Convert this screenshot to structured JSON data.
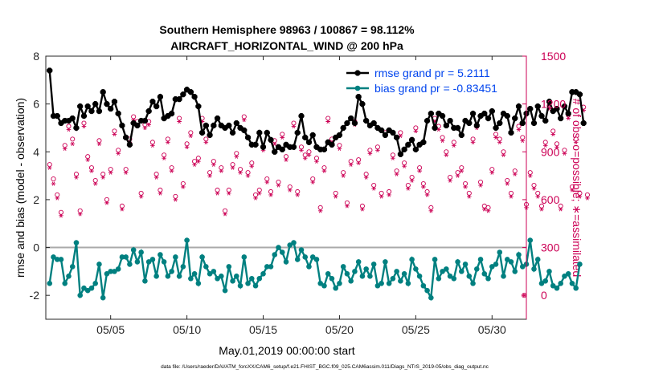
{
  "chart_data": {
    "type": "line",
    "title_line1": "Southern Hemisphere 98963 / 100867 = 98.112%",
    "title_line2": "AIRCRAFT_HORIZONTAL_WIND @ 200 hPa",
    "xlabel": "May.01,2019 00:00:00 start",
    "ylabel_left": "rmse and bias (model - observation)",
    "ylabel_right": "# of obs: o=possible; ∗=assimilated",
    "footer": "data file: /Users/raeder/DAI/ATM_forcXX/CAM6_setup/f.e21.FHIST_BGC.f09_025.CAM6assim.011/Diags_NTrS_2019-05/obs_diag_output.nc",
    "xlim": [
      0.75,
      32.25
    ],
    "ylim_left": [
      -3,
      8
    ],
    "ylim_right": [
      -150,
      1500
    ],
    "x_ticks": [
      5,
      10,
      15,
      20,
      25,
      30
    ],
    "x_tick_labels": [
      "05/05",
      "05/10",
      "05/15",
      "05/20",
      "05/25",
      "05/30"
    ],
    "y_ticks_left": [
      -2,
      0,
      2,
      4,
      6,
      8
    ],
    "y_tick_labels_left": [
      "-2",
      "0",
      "2",
      "4",
      "6",
      "8"
    ],
    "y_ticks_right": [
      0,
      300,
      600,
      900,
      1200,
      1500
    ],
    "y_tick_labels_right": [
      "0",
      "300",
      "600",
      "900",
      "1200",
      "1500"
    ],
    "zero_line": 0,
    "legend_position": "top-right",
    "colors": {
      "rmse": "#000000",
      "bias": "#008080",
      "obs": "#cc0055",
      "legend_text": "#0044ee",
      "zero_line": "#aaaaaa"
    },
    "x_start": 1,
    "x_step": 0.25,
    "series": [
      {
        "name": "rmse grand pr = 5.2111",
        "axis": "left",
        "values": [
          7.4,
          5.5,
          5.5,
          5.2,
          5.3,
          5.3,
          5.4,
          5.0,
          5.9,
          5.5,
          5.9,
          5.7,
          6.0,
          5.7,
          6.5,
          6.0,
          5.8,
          6.1,
          5.6,
          5.1,
          4.6,
          4.3,
          5.2,
          5.1,
          5.3,
          5.3,
          5.7,
          6.1,
          5.9,
          6.3,
          5.4,
          5.5,
          5.6,
          6.2,
          6.2,
          6.4,
          6.6,
          6.5,
          6.3,
          5.9,
          4.8,
          5.1,
          4.7,
          5.1,
          5.4,
          5.1,
          5.0,
          5.1,
          4.8,
          5.2,
          5.0,
          4.9,
          4.6,
          4.3,
          4.3,
          4.8,
          4.2,
          4.8,
          4.5,
          4.0,
          4.2,
          4.1,
          4.3,
          4.2,
          4.2,
          4.8,
          5.5,
          4.6,
          4.4,
          4.7,
          4.2,
          4.1,
          4.1,
          4.4,
          4.3,
          4.6,
          4.7,
          5.0,
          5.2,
          5.4,
          5.2,
          6.3,
          6.0,
          5.3,
          5.1,
          5.2,
          5.0,
          4.9,
          4.7,
          4.9,
          4.8,
          4.6,
          3.9,
          4.1,
          4.3,
          4.5,
          4.1,
          4.3,
          4.4,
          5.3,
          5.6,
          5.0,
          5.6,
          5.5,
          5.1,
          5.3,
          5.0,
          5.0,
          4.7,
          5.3,
          5.2,
          5.6,
          5.1,
          5.5,
          5.6,
          5.4,
          5.7,
          5.0,
          5.2,
          5.6,
          5.5,
          4.8,
          5.4,
          5.9,
          5.2,
          5.6,
          5.8,
          5.2,
          5.9,
          5.5,
          5.3,
          6.1,
          5.7,
          5.8,
          5.4,
          5.9,
          5.6,
          6.5,
          6.5,
          6.4,
          5.2
        ]
      },
      {
        "name": "bias grand pr = -0.83451",
        "axis": "left",
        "values": [
          -1.5,
          -0.4,
          -0.5,
          -0.5,
          -1.5,
          -1.2,
          -0.8,
          0.2,
          -2.0,
          -1.7,
          -1.8,
          -1.7,
          -1.5,
          -0.7,
          -2.1,
          -1.1,
          -1.0,
          -1.0,
          -0.9,
          -0.4,
          -0.4,
          -0.7,
          -0.1,
          -0.6,
          -0.2,
          -1.4,
          -0.6,
          -0.5,
          -1.2,
          -0.3,
          -0.6,
          -1.2,
          -1.0,
          -0.4,
          -1.2,
          -0.8,
          0.3,
          -1.3,
          -1.1,
          -1.5,
          -0.4,
          -0.8,
          -1.1,
          -1.0,
          -1.3,
          -1.2,
          -1.8,
          -0.8,
          -1.4,
          -1.2,
          -1.6,
          -0.4,
          -1.5,
          -1.3,
          -1.6,
          -1.3,
          -1.1,
          -0.8,
          -0.8,
          -0.3,
          0.0,
          -0.2,
          -0.6,
          0.1,
          0.2,
          -0.5,
          -0.1,
          -0.4,
          -0.8,
          -0.4,
          -0.5,
          -1.5,
          -1.6,
          -1.1,
          -1.3,
          -1.7,
          -1.5,
          -0.8,
          -1.1,
          -1.4,
          -1.0,
          -0.6,
          -1.2,
          -0.9,
          -1.2,
          -0.7,
          -1.6,
          -1.5,
          -0.6,
          -1.5,
          -1.3,
          -1.0,
          -1.4,
          -1.1,
          -1.5,
          -0.5,
          -0.9,
          -1.2,
          -1.6,
          -1.8,
          -2.1,
          -0.5,
          -1.3,
          -1.0,
          -0.9,
          -1.2,
          -1.3,
          -0.6,
          -1.0,
          -0.7,
          -1.2,
          -1.5,
          -0.9,
          -0.5,
          -1.1,
          -1.3,
          -0.8,
          -0.7,
          -0.2,
          -1.2,
          -0.5,
          -0.6,
          -1.0,
          -0.3,
          -0.8,
          -0.7,
          0.3,
          -0.9,
          -0.5,
          -1.5,
          -1.4,
          -1.0,
          -1.6,
          -1.7,
          -1.5,
          -1.2,
          -1.1,
          -1.5,
          -1.7,
          -0.7
        ]
      },
      {
        "name": "possible",
        "axis": "right",
        "values": [
          820,
          730,
          630,
          520,
          940,
          1060,
          980,
          760,
          530,
          1080,
          870,
          800,
          720,
          970,
          760,
          600,
          790,
          1030,
          910,
          560,
          790,
          980,
          1120,
          1090,
          640,
          1070,
          1090,
          960,
          760,
          660,
          880,
          980,
          800,
          620,
          1110,
          700,
          950,
          1020,
          840,
          860,
          1110,
          980,
          770,
          840,
          660,
          800,
          530,
          660,
          820,
          890,
          790,
          1120,
          770,
          830,
          630,
          660,
          930,
          730,
          650,
          970,
          710,
          1010,
          870,
          680,
          1080,
          650,
          930,
          880,
          900,
          730,
          860,
          550,
          800,
          1110,
          980,
          640,
          940,
          770,
          580,
          840,
          1090,
          850,
          560,
          760,
          910,
          690,
          930,
          640,
          1020,
          650,
          880,
          780,
          1020,
          830,
          690,
          740,
          1050,
          800,
          700,
          650,
          550,
          1110,
          1060,
          990,
          900,
          740,
          960,
          770,
          800,
          700,
          640,
          980,
          1070,
          710,
          560,
          550,
          790,
          1010,
          980,
          900,
          720,
          640,
          780,
          1060,
          990,
          570,
          770,
          690,
          640,
          560,
          960,
          1190,
          1030,
          950,
          560,
          910,
          1130,
          680,
          980,
          640,
          1180,
          630
        ]
      },
      {
        "name": "assimilated",
        "axis": "right",
        "values": [
          800,
          700,
          610,
          500,
          920,
          1040,
          950,
          740,
          510,
          1060,
          850,
          780,
          700,
          950,
          740,
          580,
          770,
          1010,
          890,
          540,
          770,
          960,
          1100,
          1070,
          620,
          1050,
          1070,
          940,
          740,
          640,
          860,
          960,
          780,
          600,
          1090,
          680,
          930,
          1000,
          820,
          840,
          1090,
          960,
          750,
          820,
          640,
          780,
          510,
          640,
          800,
          870,
          770,
          1100,
          750,
          810,
          610,
          640,
          910,
          710,
          630,
          950,
          690,
          990,
          850,
          660,
          1060,
          630,
          910,
          860,
          880,
          710,
          840,
          530,
          780,
          1090,
          960,
          620,
          920,
          750,
          560,
          820,
          1070,
          830,
          540,
          740,
          890,
          670,
          910,
          620,
          1000,
          630,
          860,
          760,
          1000,
          810,
          670,
          720,
          1030,
          780,
          680,
          630,
          530,
          1090,
          1040,
          970,
          880,
          720,
          940,
          750,
          780,
          680,
          620,
          960,
          1050,
          690,
          540,
          530,
          770,
          990,
          960,
          880,
          700,
          620,
          760,
          1040,
          970,
          550,
          750,
          670,
          620,
          540,
          940,
          1170,
          1010,
          930,
          540,
          890,
          1110,
          660,
          960,
          620,
          1160,
          610
        ]
      }
    ],
    "extra_points": [
      {
        "series": "possible",
        "x": 32.1,
        "y": 0
      },
      {
        "series": "assimilated",
        "x": 32.1,
        "y": 0
      }
    ]
  }
}
